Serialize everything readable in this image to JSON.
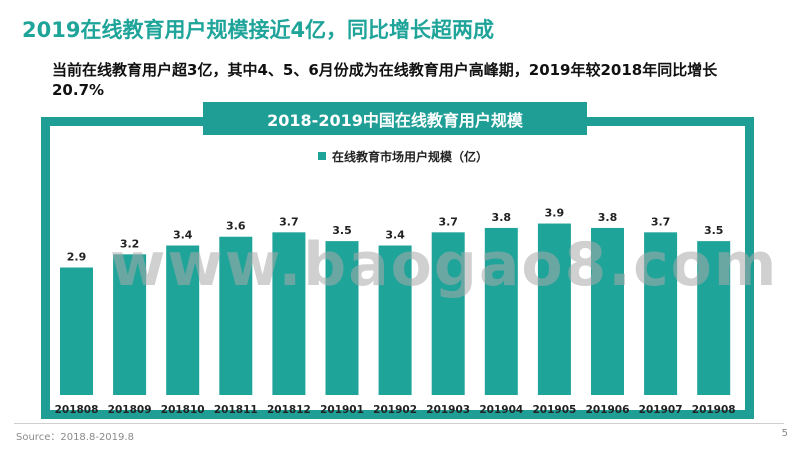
{
  "header": {
    "title": "2019在线教育用户规模接近4亿，同比增长超两成",
    "subtitle": "当前在线教育用户超3亿，其中4、5、6月份成为在线教育用户高峰期，2019年较2018年同比增长20.7%"
  },
  "chart_data": {
    "type": "bar",
    "title": "2018-2019中国在线教育用户规模",
    "categories": [
      "201808",
      "201809",
      "201810",
      "201811",
      "201812",
      "201901",
      "201902",
      "201903",
      "201904",
      "201905",
      "201906",
      "201907",
      "201908"
    ],
    "series": [
      {
        "name": "在线教育市场用户规模（亿）",
        "values": [
          2.9,
          3.2,
          3.4,
          3.6,
          3.7,
          3.5,
          3.4,
          3.7,
          3.8,
          3.9,
          3.8,
          3.7,
          3.5
        ]
      }
    ],
    "xlabel": "",
    "ylabel": "",
    "ylim": [
      0,
      5.8
    ],
    "grid": false,
    "legend": "top-center",
    "bar_color": "#1fa49a"
  },
  "watermark": "www.baogao8.com",
  "footer": {
    "source": "Source：2018.8-2019.8",
    "page_number": "5"
  },
  "colors": {
    "accent": "#1fa49a",
    "panel": "#1f9e96"
  }
}
